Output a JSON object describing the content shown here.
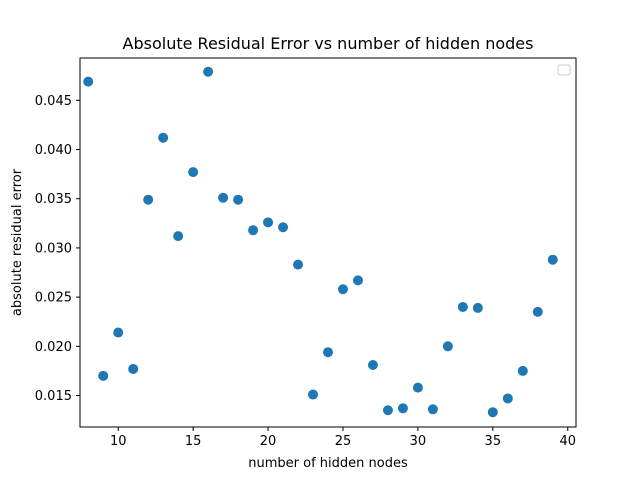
{
  "chart_data": {
    "type": "scatter",
    "title": "Absolute Residual Error vs number of hidden nodes",
    "xlabel": "number of hidden nodes",
    "ylabel": "absolute residual error",
    "xlim": [
      7.45,
      40.55
    ],
    "ylim": [
      0.0118,
      0.0493
    ],
    "xticks": [
      10,
      15,
      20,
      25,
      30,
      35,
      40
    ],
    "yticks": [
      0.015,
      0.02,
      0.025,
      0.03,
      0.035,
      0.04,
      0.045
    ],
    "ytick_labels": [
      "0.015",
      "0.020",
      "0.025",
      "0.030",
      "0.035",
      "0.040",
      "0.045"
    ],
    "grid": false,
    "legend": {
      "placement": "top-right",
      "entries": []
    },
    "marker_color": "#1f77b4",
    "series": [
      {
        "x": [
          8,
          9,
          10,
          11,
          12,
          13,
          14,
          15,
          16,
          17,
          18,
          19,
          20,
          21,
          22,
          23,
          24,
          25,
          26,
          27,
          28,
          29,
          30,
          31,
          32,
          33,
          34,
          35,
          36,
          37,
          38,
          39
        ],
        "y": [
          0.0469,
          0.017,
          0.0214,
          0.0177,
          0.0349,
          0.0412,
          0.0312,
          0.0377,
          0.0479,
          0.0351,
          0.0349,
          0.0318,
          0.0326,
          0.0321,
          0.0283,
          0.0151,
          0.0194,
          0.0258,
          0.0267,
          0.0181,
          0.0135,
          0.0137,
          0.0158,
          0.0136,
          0.02,
          0.024,
          0.0239,
          0.0133,
          0.0147,
          0.0175,
          0.0235,
          0.0288
        ]
      }
    ]
  }
}
